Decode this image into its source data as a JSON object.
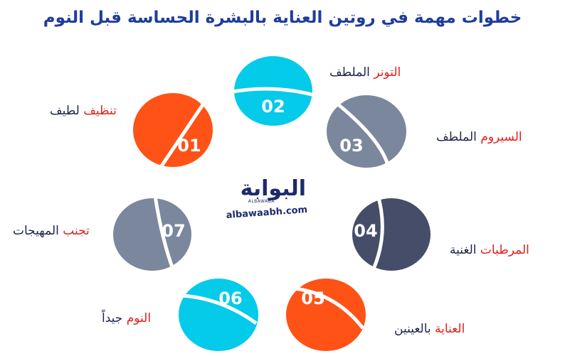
{
  "title": "خطوات مهمة في روتين العناية بالبشرة الحساسة قبل النوم",
  "steps": [
    {
      "num": "01",
      "highlight": "تنظيف",
      "rest": " لطيف",
      "color": "#ff5216"
    },
    {
      "num": "02",
      "highlight": "التونر",
      "rest": " الملطف",
      "color": "#04cbe9"
    },
    {
      "num": "03",
      "highlight": "السيروم",
      "rest": " الملطف",
      "color": "#7b879d"
    },
    {
      "num": "04",
      "highlight": "المرطبات",
      "rest": " الغنية",
      "color": "#454d68"
    },
    {
      "num": "05",
      "highlight": "العناية",
      "rest": " بالعينين",
      "color": "#ff5216"
    },
    {
      "num": "06",
      "highlight": "النوم",
      "rest": " جيداً",
      "color": "#04cbe9"
    },
    {
      "num": "07",
      "highlight": "تجنب",
      "rest": " المهيجات",
      "color": "#7b879d"
    }
  ],
  "logo": {
    "arabic": "البوابة",
    "sub": "ALBAWABA",
    "domain": "albawaabh.com"
  },
  "colors": {
    "title": "#1f3d99",
    "highlight": "#e0201b",
    "text": "#1e2448"
  }
}
